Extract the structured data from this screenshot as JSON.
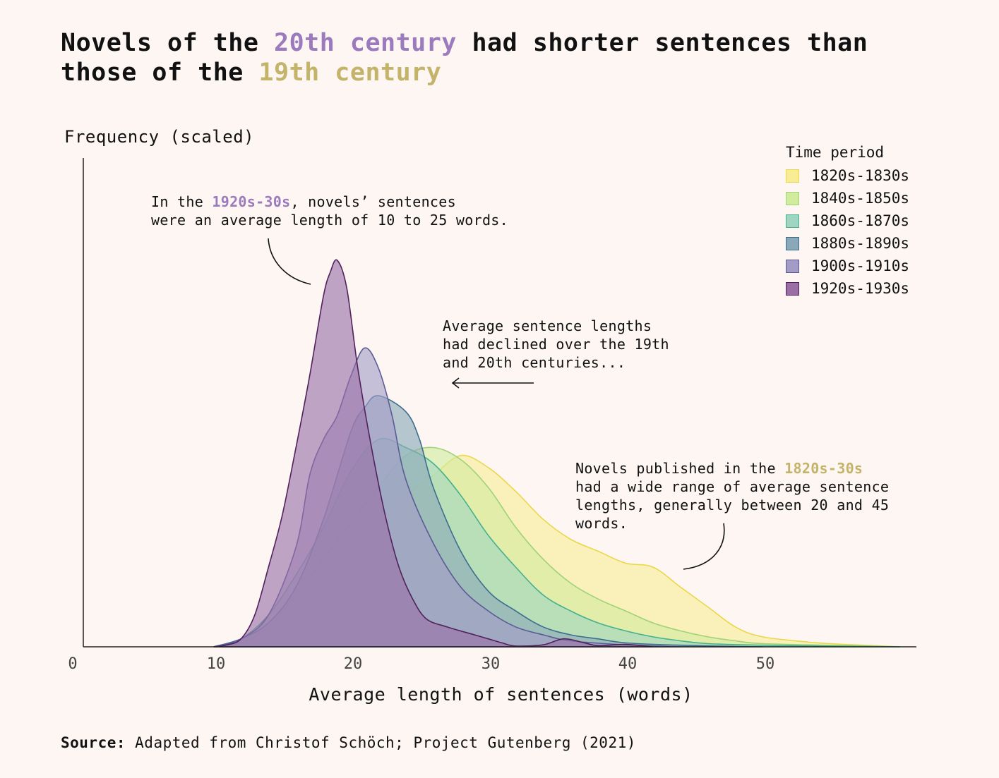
{
  "title": {
    "part1": "Novels of the ",
    "highlight1": "20th century",
    "part2": " had shorter sentences than those of the ",
    "highlight2": "19th century"
  },
  "annotations": {
    "a1_pre": "In the ",
    "a1_hl": "1920s-30s",
    "a1_post": ", novels’ sentences\nwere an average length of 10 to 25 words.",
    "a2": "Average sentence lengths\nhad declined over the 19th\nand 20th centuries...",
    "a3_pre": "Novels published in the ",
    "a3_hl": "1820s-30s",
    "a3_post": "\nhad a wide range of average sentence\nlengths, generally between 20 and 45\nwords."
  },
  "source": {
    "label": "Source:",
    "text": " Adapted from Christof Schöch; Project Gutenberg (2021)"
  },
  "chart_data": {
    "type": "area",
    "title": "Novels of the 20th century had shorter sentences than those of the 19th century",
    "xlabel": "Average length of sentences (words)",
    "ylabel": "Frequency (scaled)",
    "xlim": [
      0,
      60
    ],
    "ylim": [
      0,
      1
    ],
    "x_ticks": [
      0,
      10,
      20,
      30,
      40,
      50
    ],
    "legend_title": "Time period",
    "legend_position": "top-right",
    "series": [
      {
        "name": "1820s-1830s",
        "fill": "#f8ec95",
        "stroke": "#e9d84a",
        "points": [
          [
            10,
            0
          ],
          [
            12,
            0.01
          ],
          [
            14,
            0.04
          ],
          [
            16,
            0.09
          ],
          [
            18,
            0.15
          ],
          [
            20,
            0.22
          ],
          [
            22,
            0.3
          ],
          [
            24,
            0.38
          ],
          [
            26,
            0.43
          ],
          [
            28,
            0.48
          ],
          [
            30,
            0.45
          ],
          [
            32,
            0.39
          ],
          [
            34,
            0.32
          ],
          [
            36,
            0.27
          ],
          [
            38,
            0.24
          ],
          [
            40,
            0.21
          ],
          [
            42,
            0.2
          ],
          [
            44,
            0.15
          ],
          [
            46,
            0.1
          ],
          [
            48,
            0.05
          ],
          [
            50,
            0.025
          ],
          [
            54,
            0.01
          ],
          [
            58,
            0.003
          ],
          [
            60,
            0
          ]
        ]
      },
      {
        "name": "1840s-1850s",
        "fill": "#d2ec9e",
        "stroke": "#9fd27a",
        "points": [
          [
            10,
            0
          ],
          [
            12,
            0.01
          ],
          [
            14,
            0.05
          ],
          [
            16,
            0.13
          ],
          [
            18,
            0.22
          ],
          [
            20,
            0.31
          ],
          [
            22,
            0.4
          ],
          [
            24,
            0.48
          ],
          [
            26,
            0.5
          ],
          [
            28,
            0.47
          ],
          [
            30,
            0.4
          ],
          [
            32,
            0.3
          ],
          [
            34,
            0.22
          ],
          [
            36,
            0.16
          ],
          [
            38,
            0.12
          ],
          [
            40,
            0.09
          ],
          [
            42,
            0.06
          ],
          [
            44,
            0.04
          ],
          [
            46,
            0.025
          ],
          [
            48,
            0.015
          ],
          [
            50,
            0.008
          ],
          [
            56,
            0.003
          ],
          [
            60,
            0
          ]
        ]
      },
      {
        "name": "1860s-1870s",
        "fill": "#9fd6c2",
        "stroke": "#45b08f",
        "points": [
          [
            10,
            0
          ],
          [
            12,
            0.02
          ],
          [
            14,
            0.08
          ],
          [
            16,
            0.18
          ],
          [
            18,
            0.3
          ],
          [
            20,
            0.44
          ],
          [
            22,
            0.52
          ],
          [
            24,
            0.5
          ],
          [
            26,
            0.46
          ],
          [
            28,
            0.38
          ],
          [
            30,
            0.28
          ],
          [
            32,
            0.2
          ],
          [
            34,
            0.13
          ],
          [
            36,
            0.09
          ],
          [
            38,
            0.06
          ],
          [
            40,
            0.04
          ],
          [
            42,
            0.025
          ],
          [
            44,
            0.015
          ],
          [
            46,
            0.008
          ],
          [
            50,
            0.004
          ],
          [
            60,
            0
          ]
        ]
      },
      {
        "name": "1880s-1890s",
        "fill": "#8aa8b8",
        "stroke": "#3c6e8e",
        "points": [
          [
            10,
            0
          ],
          [
            12,
            0.02
          ],
          [
            14,
            0.06
          ],
          [
            16,
            0.15
          ],
          [
            18,
            0.32
          ],
          [
            20,
            0.54
          ],
          [
            21,
            0.6
          ],
          [
            22,
            0.63
          ],
          [
            24,
            0.59
          ],
          [
            25,
            0.52
          ],
          [
            26,
            0.4
          ],
          [
            28,
            0.24
          ],
          [
            30,
            0.14
          ],
          [
            32,
            0.09
          ],
          [
            34,
            0.05
          ],
          [
            36,
            0.03
          ],
          [
            38,
            0.02
          ],
          [
            40,
            0.01
          ],
          [
            44,
            0.004
          ],
          [
            50,
            0
          ]
        ]
      },
      {
        "name": "1900s-1910s",
        "fill": "#a39cc7",
        "stroke": "#5b5b96",
        "points": [
          [
            10,
            0
          ],
          [
            12,
            0.02
          ],
          [
            14,
            0.08
          ],
          [
            16,
            0.25
          ],
          [
            17,
            0.43
          ],
          [
            18,
            0.52
          ],
          [
            19,
            0.58
          ],
          [
            20,
            0.68
          ],
          [
            21,
            0.75
          ],
          [
            22,
            0.7
          ],
          [
            23,
            0.58
          ],
          [
            24,
            0.42
          ],
          [
            26,
            0.26
          ],
          [
            28,
            0.15
          ],
          [
            30,
            0.09
          ],
          [
            32,
            0.05
          ],
          [
            34,
            0.03
          ],
          [
            36,
            0.015
          ],
          [
            40,
            0.005
          ],
          [
            44,
            0
          ]
        ]
      },
      {
        "name": "1920s-1930s",
        "fill": "#9a6fa6",
        "stroke": "#51215c",
        "points": [
          [
            10,
            0
          ],
          [
            11,
            0.005
          ],
          [
            12,
            0.02
          ],
          [
            13,
            0.08
          ],
          [
            14,
            0.2
          ],
          [
            15,
            0.33
          ],
          [
            16,
            0.5
          ],
          [
            17,
            0.68
          ],
          [
            18,
            0.88
          ],
          [
            18.5,
            0.94
          ],
          [
            19,
            0.97
          ],
          [
            19.7,
            0.9
          ],
          [
            20.5,
            0.7
          ],
          [
            21.5,
            0.5
          ],
          [
            22.5,
            0.33
          ],
          [
            23.5,
            0.2
          ],
          [
            24.5,
            0.12
          ],
          [
            25.5,
            0.07
          ],
          [
            27,
            0.05
          ],
          [
            29,
            0.03
          ],
          [
            30,
            0.02
          ],
          [
            31,
            0.01
          ],
          [
            32,
            0.002
          ],
          [
            34,
            0.005
          ],
          [
            35.5,
            0.02
          ],
          [
            37,
            0.01
          ],
          [
            38,
            0.003
          ],
          [
            40,
            0.006
          ],
          [
            42,
            0
          ]
        ]
      }
    ]
  }
}
